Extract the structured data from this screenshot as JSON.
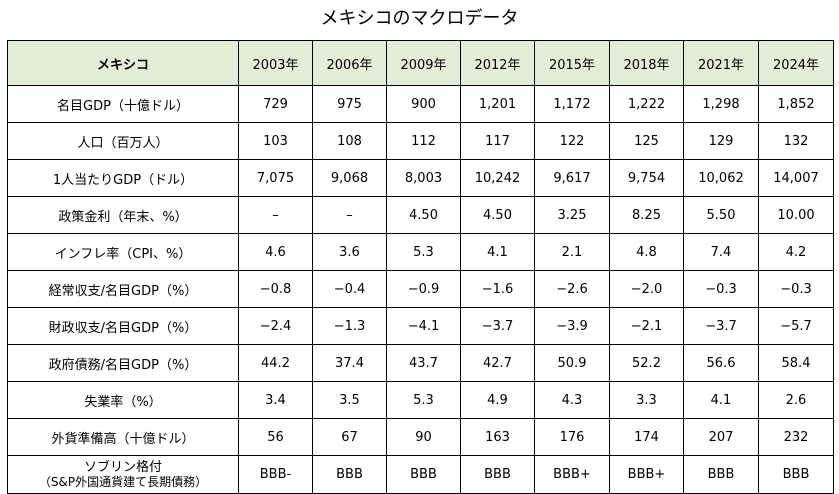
{
  "title": "メキシコのマクロデータ",
  "table": {
    "corner_label": "メキシコ",
    "years": [
      "2003年",
      "2006年",
      "2009年",
      "2012年",
      "2015年",
      "2018年",
      "2021年",
      "2024年"
    ],
    "rows": [
      {
        "label": "名目GDP（十億ドル）",
        "values": [
          "729",
          "975",
          "900",
          "1,201",
          "1,172",
          "1,222",
          "1,298",
          "1,852"
        ]
      },
      {
        "label": "人口（百万人）",
        "values": [
          "103",
          "108",
          "112",
          "117",
          "122",
          "125",
          "129",
          "132"
        ]
      },
      {
        "label": "1人当たりGDP（ドル）",
        "values": [
          "7,075",
          "9,068",
          "8,003",
          "10,242",
          "9,617",
          "9,754",
          "10,062",
          "14,007"
        ]
      },
      {
        "label": "政策金利（年末、%）",
        "values": [
          "–",
          "–",
          "4.50",
          "4.50",
          "3.25",
          "8.25",
          "5.50",
          "10.00"
        ]
      },
      {
        "label": "インフレ率（CPI、%）",
        "values": [
          "4.6",
          "3.6",
          "5.3",
          "4.1",
          "2.1",
          "4.8",
          "7.4",
          "4.2"
        ]
      },
      {
        "label": "経常収支/名目GDP（%）",
        "values": [
          "−0.8",
          "−0.4",
          "−0.9",
          "−1.6",
          "−2.6",
          "−2.0",
          "−0.3",
          "−0.3"
        ]
      },
      {
        "label": "財政収支/名目GDP（%）",
        "values": [
          "−2.4",
          "−1.3",
          "−4.1",
          "−3.7",
          "−3.9",
          "−2.1",
          "−3.7",
          "−5.7"
        ]
      },
      {
        "label": "政府債務/名目GDP（%）",
        "values": [
          "44.2",
          "37.4",
          "43.7",
          "42.7",
          "50.9",
          "52.2",
          "56.6",
          "58.4"
        ]
      },
      {
        "label": "失業率（%）",
        "values": [
          "3.4",
          "3.5",
          "5.3",
          "4.9",
          "4.3",
          "3.3",
          "4.1",
          "2.6"
        ]
      },
      {
        "label": "外貨準備高（十億ドル）",
        "values": [
          "56",
          "67",
          "90",
          "163",
          "176",
          "174",
          "207",
          "232"
        ]
      }
    ],
    "rating_row": {
      "label_line1": "ソブリン格付",
      "label_line2": "（S&P外国通貨建て長期債務）",
      "values": [
        "BBB-",
        "BBB",
        "BBB",
        "BBB",
        "BBB+",
        "BBB+",
        "BBB",
        "BBB"
      ]
    }
  },
  "colors": {
    "header_background": "#e3eed9",
    "border": "#000000"
  }
}
